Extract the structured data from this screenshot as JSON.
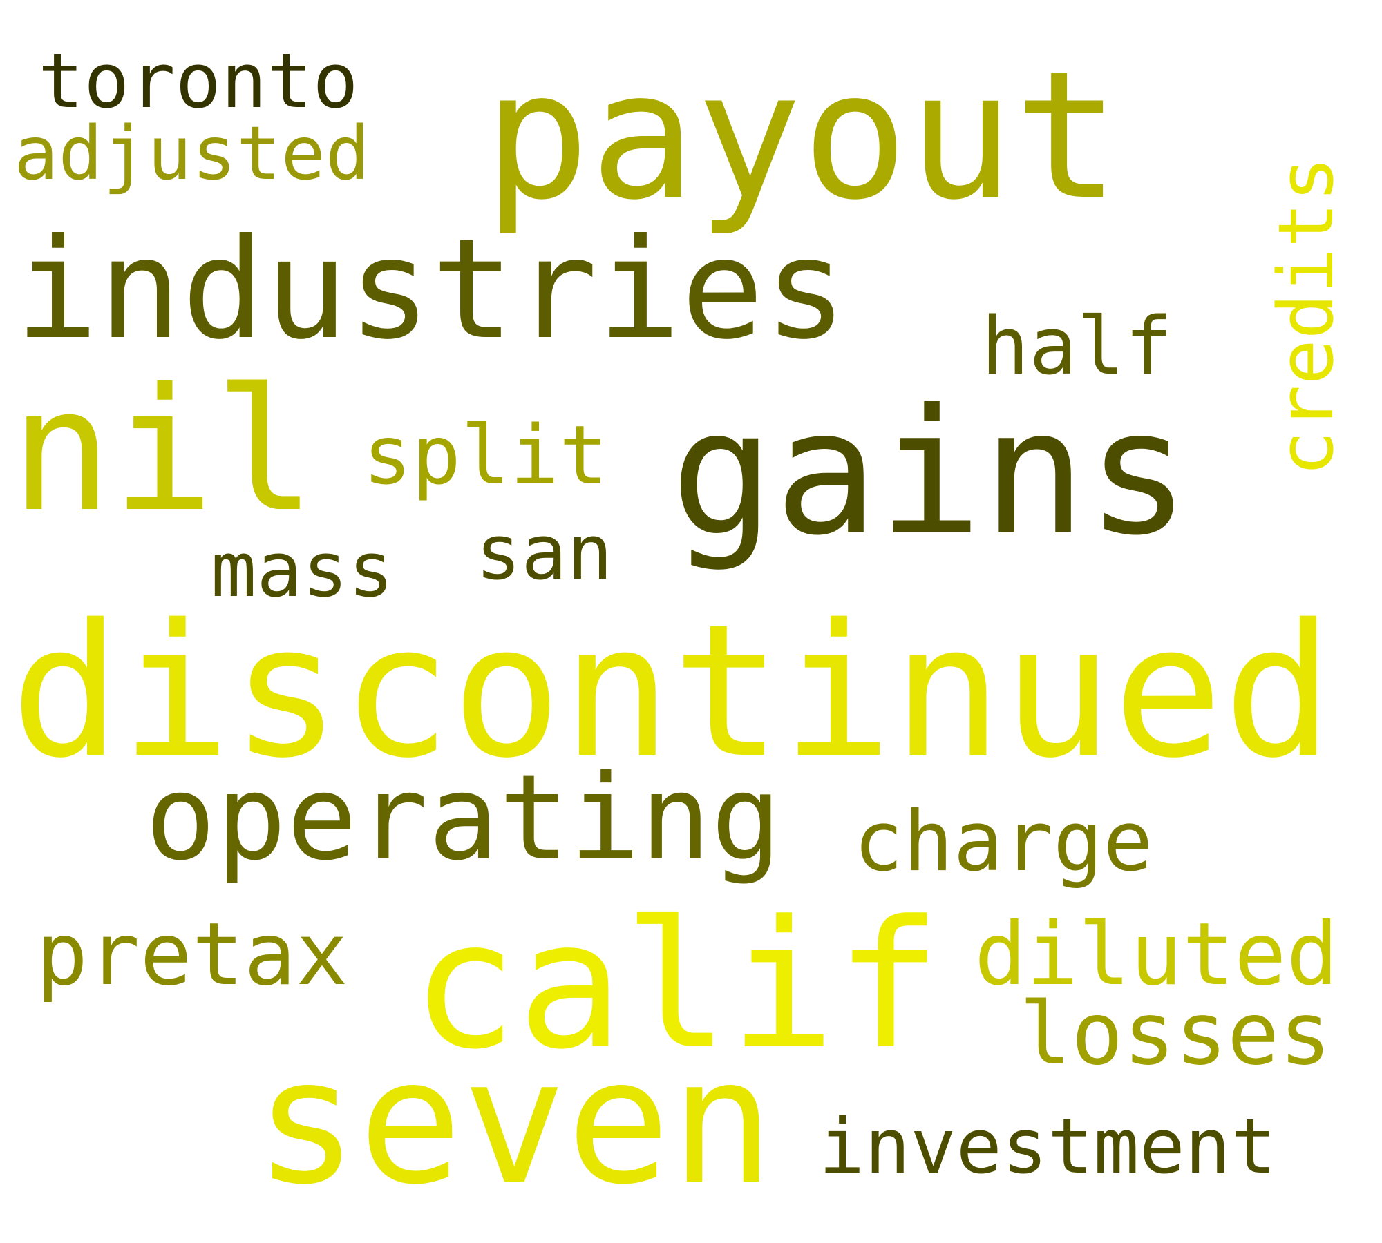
{
  "words": {
    "toronto": {
      "text": "toronto",
      "color": "#333300"
    },
    "payout": {
      "text": "payout",
      "color": "#aaaa00"
    },
    "adjusted": {
      "text": "adjusted",
      "color": "#99990a"
    },
    "credits": {
      "text": "credits",
      "color": "#e6e600"
    },
    "industries": {
      "text": "industries",
      "color": "#5c5c00"
    },
    "half": {
      "text": "half",
      "color": "#5c5c00"
    },
    "nil": {
      "text": "nil",
      "color": "#c8c800"
    },
    "gains": {
      "text": "gains",
      "color": "#4d4d00"
    },
    "split": {
      "text": "split",
      "color": "#a5a500"
    },
    "san": {
      "text": "san",
      "color": "#4d4d00"
    },
    "mass": {
      "text": "mass",
      "color": "#4d4d00"
    },
    "discontinued": {
      "text": "discontinued",
      "color": "#e6e600"
    },
    "operating": {
      "text": "operating",
      "color": "#666600"
    },
    "charge": {
      "text": "charge",
      "color": "#7a7a00"
    },
    "pretax": {
      "text": "pretax",
      "color": "#8a8a00"
    },
    "calif": {
      "text": "calif",
      "color": "#eeee00"
    },
    "diluted": {
      "text": "diluted",
      "color": "#c8c800"
    },
    "losses": {
      "text": "losses",
      "color": "#a0a000"
    },
    "seven": {
      "text": "seven",
      "color": "#e6e600"
    },
    "investment": {
      "text": "investment",
      "color": "#4d4d00"
    }
  }
}
